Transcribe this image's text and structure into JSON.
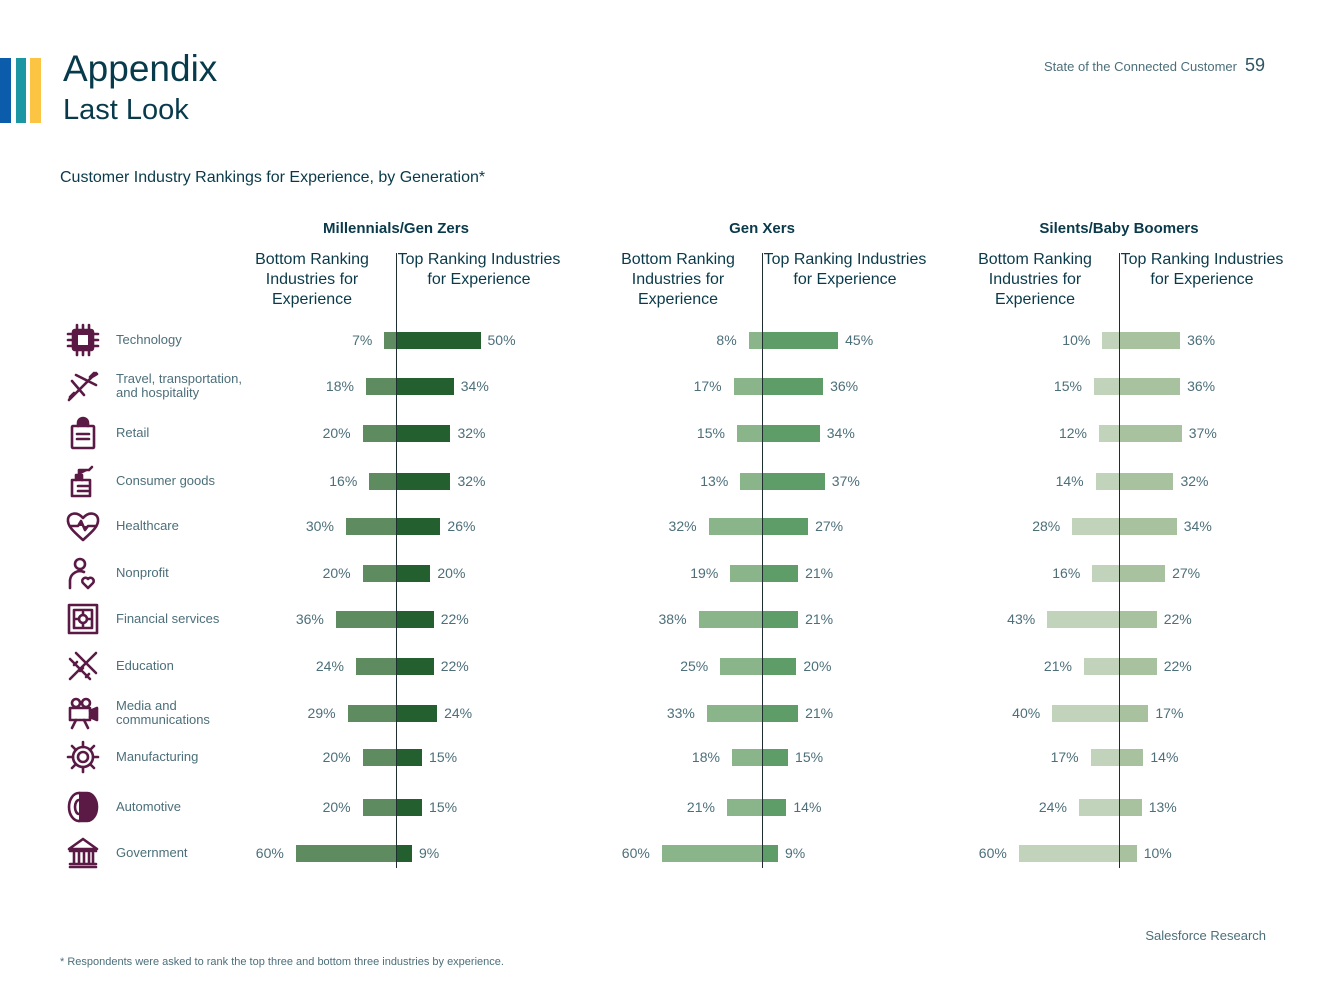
{
  "header": {
    "title": "Appendix",
    "subtitle": "Last Look",
    "report_name": "State of the Connected Customer",
    "page_number": "59"
  },
  "brand_colors": [
    "#0b5cab",
    "#1b96a3",
    "#fbc443",
    "#e8a33d"
  ],
  "footer": {
    "source": "Salesforce Research",
    "footnote": "* Respondents were asked to rank the top three and bottom three industries by experience."
  },
  "chart_data": {
    "type": "bar",
    "title": "Customer Industry Rankings for Experience, by Generation*",
    "column_headers": {
      "bottom": "Bottom Ranking Industries for Experience",
      "top": "Top Ranking Industries for Experience"
    },
    "categories": [
      {
        "label": "Technology",
        "icon": "chip-icon"
      },
      {
        "label": "Travel, transportation, and hospitality",
        "icon": "plane-icon"
      },
      {
        "label": "Retail",
        "icon": "shopping-bag-icon"
      },
      {
        "label": "Consumer goods",
        "icon": "spray-bottle-icon"
      },
      {
        "label": "Healthcare",
        "icon": "heart-pulse-icon"
      },
      {
        "label": "Nonprofit",
        "icon": "person-heart-icon"
      },
      {
        "label": "Financial services",
        "icon": "safe-icon"
      },
      {
        "label": "Education",
        "icon": "pencil-ruler-icon"
      },
      {
        "label": "Media and communications",
        "icon": "film-camera-icon"
      },
      {
        "label": "Manufacturing",
        "icon": "gear-icon"
      },
      {
        "label": "Automotive",
        "icon": "tire-icon"
      },
      {
        "label": "Government",
        "icon": "building-icon"
      }
    ],
    "series": [
      {
        "name": "Millennials/Gen Zers",
        "bottom": [
          7,
          18,
          20,
          16,
          30,
          20,
          36,
          24,
          29,
          20,
          20,
          60
        ],
        "top": [
          50,
          34,
          32,
          32,
          26,
          20,
          22,
          22,
          24,
          15,
          15,
          9
        ],
        "bottom_color": "#5e8c60",
        "top_color": "#245f2f"
      },
      {
        "name": "Gen Xers",
        "bottom": [
          8,
          17,
          15,
          13,
          32,
          19,
          38,
          25,
          33,
          18,
          21,
          60
        ],
        "top": [
          45,
          36,
          34,
          37,
          27,
          21,
          21,
          20,
          21,
          15,
          14,
          9
        ],
        "bottom_color": "#8ab58a",
        "top_color": "#5e9d67"
      },
      {
        "name": "Silents/Baby Boomers",
        "bottom": [
          10,
          15,
          12,
          14,
          28,
          16,
          43,
          21,
          40,
          17,
          24,
          60
        ],
        "top": [
          36,
          36,
          37,
          32,
          34,
          27,
          22,
          22,
          17,
          14,
          13,
          10
        ],
        "bottom_color": "#c1d3bb",
        "top_color": "#a8c29f"
      }
    ],
    "unit": "%",
    "icon_color": "#5a1a45"
  }
}
